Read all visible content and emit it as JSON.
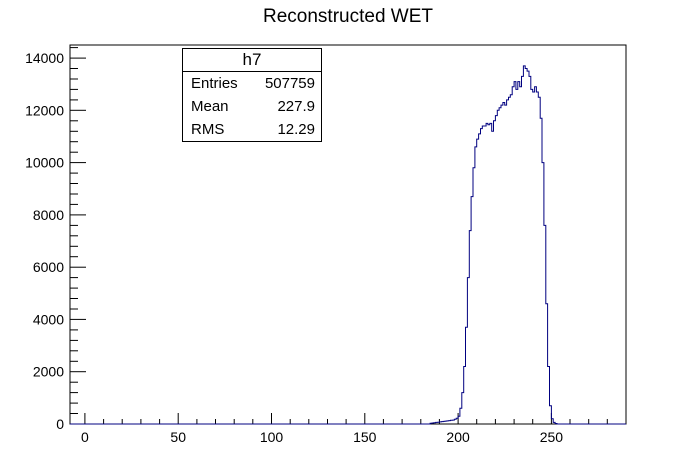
{
  "chart_data": {
    "type": "histogram",
    "title": "Reconstructed WET",
    "xlabel": "",
    "ylabel": "",
    "xlim": [
      -8,
      290
    ],
    "ylim": [
      0,
      14500
    ],
    "x_ticks": [
      0,
      50,
      100,
      150,
      200,
      250
    ],
    "y_ticks": [
      0,
      2000,
      4000,
      6000,
      8000,
      10000,
      12000,
      14000
    ],
    "bin_width": 1,
    "line_color": "#000080",
    "stats": {
      "name": "h7",
      "entries_label": "Entries",
      "entries": "507759",
      "mean_label": "Mean",
      "mean": "227.9",
      "rms_label": "RMS",
      "rms": "12.29"
    },
    "bins": [
      [
        185,
        30
      ],
      [
        186,
        40
      ],
      [
        187,
        50
      ],
      [
        188,
        60
      ],
      [
        189,
        70
      ],
      [
        190,
        80
      ],
      [
        191,
        90
      ],
      [
        192,
        100
      ],
      [
        193,
        110
      ],
      [
        194,
        120
      ],
      [
        195,
        130
      ],
      [
        196,
        140
      ],
      [
        197,
        150
      ],
      [
        198,
        180
      ],
      [
        199,
        220
      ],
      [
        200,
        300
      ],
      [
        201,
        600
      ],
      [
        202,
        1200
      ],
      [
        203,
        2200
      ],
      [
        204,
        3700
      ],
      [
        205,
        5600
      ],
      [
        206,
        7400
      ],
      [
        207,
        8700
      ],
      [
        208,
        9800
      ],
      [
        209,
        10600
      ],
      [
        210,
        10900
      ],
      [
        211,
        11100
      ],
      [
        212,
        11300
      ],
      [
        213,
        11400
      ],
      [
        214,
        11400
      ],
      [
        215,
        11500
      ],
      [
        216,
        11450
      ],
      [
        217,
        11500
      ],
      [
        218,
        11200
      ],
      [
        219,
        11600
      ],
      [
        220,
        11800
      ],
      [
        221,
        12000
      ],
      [
        222,
        12100
      ],
      [
        223,
        12200
      ],
      [
        224,
        12300
      ],
      [
        225,
        12200
      ],
      [
        226,
        12400
      ],
      [
        227,
        12500
      ],
      [
        228,
        12600
      ],
      [
        229,
        12900
      ],
      [
        230,
        13100
      ],
      [
        231,
        12800
      ],
      [
        232,
        13100
      ],
      [
        233,
        12900
      ],
      [
        234,
        13300
      ],
      [
        235,
        13700
      ],
      [
        236,
        13600
      ],
      [
        237,
        13500
      ],
      [
        238,
        13300
      ],
      [
        239,
        12800
      ],
      [
        240,
        12700
      ],
      [
        241,
        12900
      ],
      [
        242,
        12700
      ],
      [
        243,
        12500
      ],
      [
        244,
        11700
      ],
      [
        245,
        10000
      ],
      [
        246,
        7600
      ],
      [
        247,
        4600
      ],
      [
        248,
        2200
      ],
      [
        249,
        700
      ],
      [
        250,
        200
      ],
      [
        251,
        60
      ],
      [
        252,
        20
      ]
    ]
  }
}
